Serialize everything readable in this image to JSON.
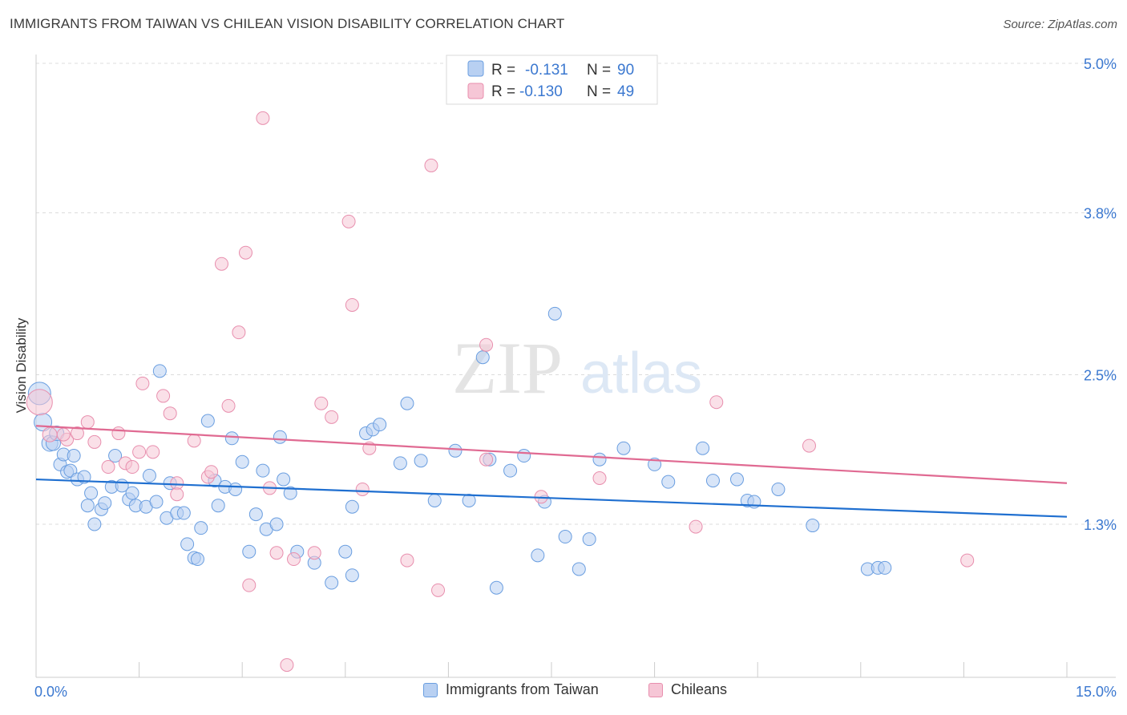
{
  "header": {
    "title": "IMMIGRANTS FROM TAIWAN VS CHILEAN VISION DISABILITY CORRELATION CHART",
    "source": "Source: ZipAtlas.com"
  },
  "watermark": {
    "zip": "ZIP",
    "atlas": "atlas"
  },
  "chart_data": {
    "type": "scatter",
    "ylabel": "Vision Disability",
    "xlim": [
      0,
      15
    ],
    "ylim": [
      0.0,
      5.0
    ],
    "x_tick_labels": [
      "0.0%",
      "15.0%"
    ],
    "y_ticks": [
      1.3,
      2.5,
      3.8,
      5.0
    ],
    "y_tick_labels": [
      "1.3%",
      "2.5%",
      "3.8%",
      "5.0%"
    ],
    "grid": "horizontal-dashed",
    "legend_position": "top-center",
    "series": [
      {
        "name": "Immigrants from Taiwan",
        "color": "#6a9ee0",
        "fill": "#b8d0f2",
        "line_color": "#1f6fd0",
        "r_label": "R =",
        "r_value": "-0.131",
        "n_label": "N =",
        "n_value": "90",
        "trend": {
          "x": [
            0,
            15
          ],
          "y": [
            1.66,
            1.36
          ]
        },
        "points": [
          [
            0.05,
            2.35,
            14
          ],
          [
            0.1,
            2.12,
            11
          ],
          [
            0.2,
            1.95,
            10
          ],
          [
            0.25,
            1.95,
            9
          ],
          [
            0.3,
            2.03,
            9
          ],
          [
            0.35,
            1.78,
            8
          ],
          [
            0.4,
            1.86,
            8
          ],
          [
            0.45,
            1.72,
            8
          ],
          [
            0.5,
            1.73,
            8
          ],
          [
            0.55,
            1.85,
            8
          ],
          [
            0.6,
            1.66,
            8
          ],
          [
            0.7,
            1.68,
            8
          ],
          [
            0.75,
            1.45,
            8
          ],
          [
            0.8,
            1.55,
            8
          ],
          [
            0.85,
            1.3,
            8
          ],
          [
            0.95,
            1.42,
            8
          ],
          [
            1.0,
            1.47,
            8
          ],
          [
            1.1,
            1.6,
            8
          ],
          [
            1.15,
            1.85,
            8
          ],
          [
            1.25,
            1.61,
            8
          ],
          [
            1.35,
            1.5,
            8
          ],
          [
            1.4,
            1.55,
            8
          ],
          [
            1.45,
            1.45,
            8
          ],
          [
            1.6,
            1.44,
            8
          ],
          [
            1.65,
            1.69,
            8
          ],
          [
            1.75,
            1.48,
            8
          ],
          [
            1.8,
            2.53,
            8
          ],
          [
            1.9,
            1.35,
            8
          ],
          [
            1.95,
            1.63,
            8
          ],
          [
            2.05,
            1.39,
            8
          ],
          [
            2.15,
            1.39,
            8
          ],
          [
            2.2,
            1.14,
            8
          ],
          [
            2.3,
            1.03,
            8
          ],
          [
            2.35,
            1.02,
            8
          ],
          [
            2.4,
            1.27,
            8
          ],
          [
            2.5,
            2.13,
            8
          ],
          [
            2.6,
            1.65,
            8
          ],
          [
            2.65,
            1.45,
            8
          ],
          [
            2.75,
            1.6,
            8
          ],
          [
            2.85,
            1.99,
            8
          ],
          [
            2.9,
            1.58,
            8
          ],
          [
            3.0,
            1.8,
            8
          ],
          [
            3.1,
            1.08,
            8
          ],
          [
            3.2,
            1.38,
            8
          ],
          [
            3.3,
            1.73,
            8
          ],
          [
            3.35,
            1.26,
            8
          ],
          [
            3.5,
            1.3,
            8
          ],
          [
            3.55,
            2.0,
            8
          ],
          [
            3.6,
            1.66,
            8
          ],
          [
            3.7,
            1.55,
            8
          ],
          [
            3.8,
            1.08,
            8
          ],
          [
            4.05,
            0.99,
            8
          ],
          [
            4.3,
            0.83,
            8
          ],
          [
            4.5,
            1.08,
            8
          ],
          [
            4.6,
            1.44,
            8
          ],
          [
            4.8,
            2.03,
            8
          ],
          [
            4.9,
            2.06,
            8
          ],
          [
            5.0,
            2.1,
            8
          ],
          [
            5.3,
            1.79,
            8
          ],
          [
            5.4,
            2.27,
            8
          ],
          [
            5.6,
            1.81,
            8
          ],
          [
            5.8,
            1.49,
            8
          ],
          [
            6.1,
            1.89,
            8
          ],
          [
            6.3,
            1.49,
            8
          ],
          [
            6.5,
            2.64,
            8
          ],
          [
            6.6,
            1.82,
            8
          ],
          [
            6.9,
            1.73,
            8
          ],
          [
            7.1,
            1.85,
            8
          ],
          [
            7.3,
            1.05,
            8
          ],
          [
            7.4,
            1.48,
            8
          ],
          [
            7.55,
            2.99,
            8
          ],
          [
            7.7,
            1.2,
            8
          ],
          [
            7.9,
            0.94,
            8
          ],
          [
            8.05,
            1.18,
            8
          ],
          [
            8.2,
            1.82,
            8
          ],
          [
            8.55,
            1.91,
            8
          ],
          [
            9.0,
            1.78,
            8
          ],
          [
            9.2,
            1.64,
            8
          ],
          [
            9.7,
            1.91,
            8
          ],
          [
            9.85,
            1.65,
            8
          ],
          [
            10.2,
            1.66,
            8
          ],
          [
            10.35,
            1.49,
            8
          ],
          [
            10.45,
            1.48,
            8
          ],
          [
            11.3,
            1.29,
            8
          ],
          [
            12.1,
            0.94,
            8
          ],
          [
            12.25,
            0.95,
            8
          ],
          [
            12.35,
            0.95,
            8
          ],
          [
            10.8,
            1.58,
            8
          ],
          [
            4.6,
            0.89,
            8
          ],
          [
            6.7,
            0.79,
            8
          ]
        ]
      },
      {
        "name": "Chileans",
        "color": "#e88fae",
        "fill": "#f6c6d6",
        "line_color": "#e06a92",
        "r_label": "R =",
        "r_value": "-0.130",
        "n_label": "N =",
        "n_value": "49",
        "trend": {
          "x": [
            0,
            15
          ],
          "y": [
            2.09,
            1.63
          ]
        },
        "points": [
          [
            0.05,
            2.28,
            16
          ],
          [
            0.2,
            2.02,
            9
          ],
          [
            0.45,
            1.98,
            8
          ],
          [
            0.6,
            2.03,
            8
          ],
          [
            0.75,
            2.12,
            8
          ],
          [
            0.85,
            1.96,
            8
          ],
          [
            1.05,
            1.76,
            8
          ],
          [
            1.2,
            2.03,
            8
          ],
          [
            1.3,
            1.79,
            8
          ],
          [
            1.4,
            1.76,
            8
          ],
          [
            1.55,
            2.43,
            8
          ],
          [
            1.7,
            1.88,
            8
          ],
          [
            1.85,
            2.33,
            8
          ],
          [
            1.95,
            2.19,
            8
          ],
          [
            2.05,
            1.63,
            8
          ],
          [
            2.3,
            1.97,
            8
          ],
          [
            2.5,
            1.68,
            8
          ],
          [
            2.55,
            1.72,
            8
          ],
          [
            2.7,
            3.39,
            8
          ],
          [
            2.8,
            2.25,
            8
          ],
          [
            2.95,
            2.84,
            8
          ],
          [
            3.05,
            3.48,
            8
          ],
          [
            3.1,
            0.81,
            8
          ],
          [
            3.3,
            4.56,
            8
          ],
          [
            3.4,
            1.59,
            8
          ],
          [
            3.5,
            1.07,
            8
          ],
          [
            3.65,
            0.17,
            8
          ],
          [
            3.75,
            1.02,
            8
          ],
          [
            4.05,
            1.07,
            8
          ],
          [
            4.15,
            2.27,
            8
          ],
          [
            4.3,
            2.16,
            8
          ],
          [
            4.55,
            3.73,
            8
          ],
          [
            4.6,
            3.06,
            8
          ],
          [
            4.75,
            1.58,
            8
          ],
          [
            4.85,
            1.91,
            8
          ],
          [
            5.4,
            1.01,
            8
          ],
          [
            5.75,
            4.18,
            8
          ],
          [
            5.85,
            0.77,
            8
          ],
          [
            6.55,
            2.74,
            8
          ],
          [
            6.55,
            1.82,
            8
          ],
          [
            7.35,
            1.52,
            8
          ],
          [
            8.2,
            1.67,
            8
          ],
          [
            9.6,
            1.28,
            8
          ],
          [
            9.9,
            2.28,
            8
          ],
          [
            11.25,
            1.93,
            8
          ],
          [
            13.55,
            1.01,
            8
          ],
          [
            2.05,
            1.54,
            8
          ],
          [
            1.5,
            1.88,
            8
          ],
          [
            0.4,
            2.02,
            8
          ]
        ]
      }
    ]
  }
}
